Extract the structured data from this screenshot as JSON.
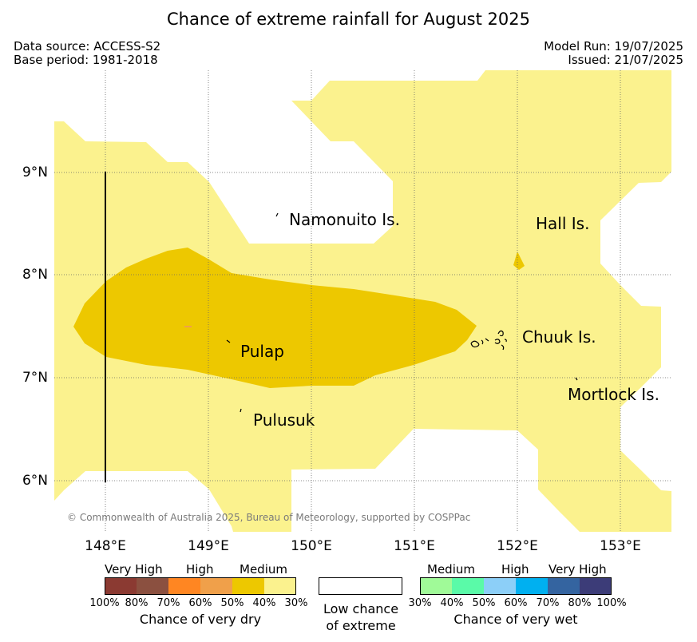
{
  "title": "Chance of extreme rainfall for August 2025",
  "meta": {
    "source": "Data source: ACCESS-S2",
    "base": "Base period: 1981-2018",
    "model_run": "Model Run: 19/07/2025",
    "issued": "Issued: 21/07/2025"
  },
  "map": {
    "x_ticks": [
      "148°E",
      "149°E",
      "150°E",
      "151°E",
      "152°E",
      "153°E"
    ],
    "y_ticks": [
      "9°N",
      "8°N",
      "7°N",
      "6°N"
    ],
    "places": [
      "Namonuito Is.",
      "Hall Is.",
      "Pulap",
      "Chuuk Is.",
      "Pulusuk",
      "Mortlock Is."
    ],
    "copyright": "© Commonwealth of Australia 2025, Bureau of Meteorology, supported by COSPPac",
    "colors": {
      "medium_dry_light": "#fbf28e",
      "medium_dry_dark": "#edc800",
      "high_dry_light": "#f0a04a",
      "background": "#ffffff",
      "grid": "#666666"
    }
  },
  "legend": {
    "dry": {
      "categories": [
        "Very High",
        "High",
        "Medium"
      ],
      "ticks": [
        "100%",
        "80%",
        "70%",
        "60%",
        "50%",
        "40%",
        "30%"
      ],
      "colors": [
        "#8b3a32",
        "#8b5040",
        "#ff8622",
        "#f0a04a",
        "#edc800",
        "#fbf28e"
      ],
      "label": "Chance of very dry"
    },
    "low": {
      "label_1": "Low chance",
      "label_2": "of extreme"
    },
    "wet": {
      "categories": [
        "Medium",
        "High",
        "Very High"
      ],
      "ticks": [
        "30%",
        "40%",
        "50%",
        "60%",
        "70%",
        "80%",
        "100%"
      ],
      "colors": [
        "#a0fa98",
        "#5afaa8",
        "#8ccff8",
        "#00b0f0",
        "#3464a0",
        "#3c3c78"
      ],
      "label": "Chance of very wet"
    }
  }
}
